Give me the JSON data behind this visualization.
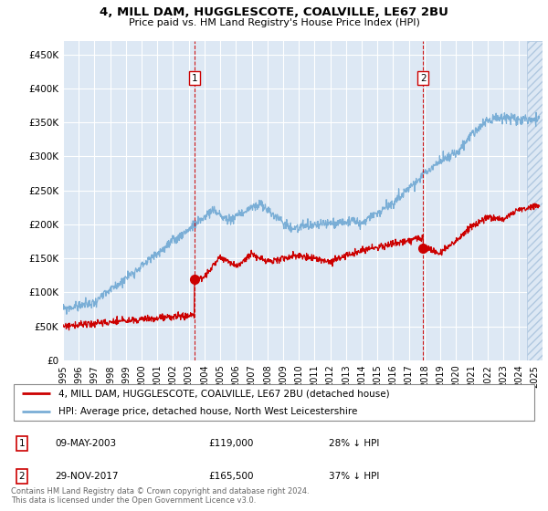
{
  "title": "4, MILL DAM, HUGGLESCOTE, COALVILLE, LE67 2BU",
  "subtitle": "Price paid vs. HM Land Registry's House Price Index (HPI)",
  "ylabel_ticks": [
    "£0",
    "£50K",
    "£100K",
    "£150K",
    "£200K",
    "£250K",
    "£300K",
    "£350K",
    "£400K",
    "£450K"
  ],
  "ytick_values": [
    0,
    50000,
    100000,
    150000,
    200000,
    250000,
    300000,
    350000,
    400000,
    450000
  ],
  "ylim": [
    0,
    470000
  ],
  "xlim_start": 1995.0,
  "xlim_end": 2025.5,
  "marker1": {
    "date_num": 2003.35,
    "price": 119000,
    "label": "1",
    "text": "09-MAY-2003",
    "amount": "£119,000",
    "pct": "28% ↓ HPI"
  },
  "marker2": {
    "date_num": 2017.91,
    "price": 165500,
    "label": "2",
    "text": "29-NOV-2017",
    "amount": "£165,500",
    "pct": "37% ↓ HPI"
  },
  "hpi_color": "#7aaed6",
  "price_color": "#cc0000",
  "bg_color": "#dde8f4",
  "grid_color": "#ffffff",
  "hatch_color": "#c5d8ee",
  "legend_label_price": "4, MILL DAM, HUGGLESCOTE, COALVILLE, LE67 2BU (detached house)",
  "legend_label_hpi": "HPI: Average price, detached house, North West Leicestershire",
  "footnote": "Contains HM Land Registry data © Crown copyright and database right 2024.\nThis data is licensed under the Open Government Licence v3.0."
}
